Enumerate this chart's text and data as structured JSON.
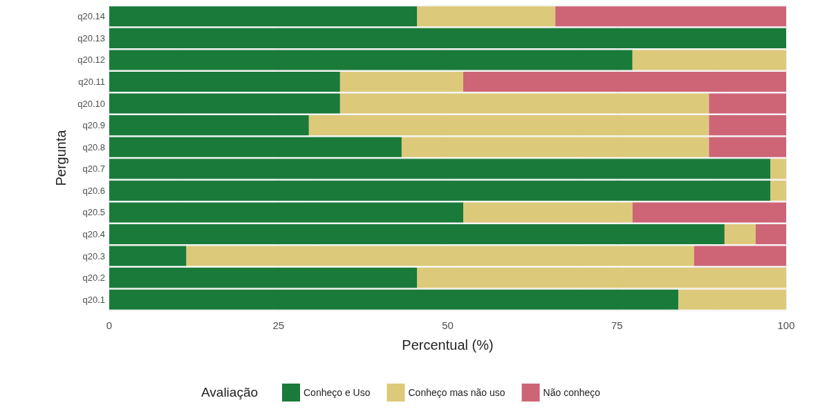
{
  "chart_data": {
    "type": "bar",
    "orientation": "horizontal",
    "stacked": true,
    "xlabel": "Percentual (%)",
    "ylabel": "Pergunta",
    "legend_title": "Avaliação",
    "legend": "bottom",
    "grid": true,
    "categories": [
      "q20.14",
      "q20.13",
      "q20.12",
      "q20.11",
      "q20.10",
      "q20.9",
      "q20.8",
      "q20.7",
      "q20.6",
      "q20.5",
      "q20.4",
      "q20.3",
      "q20.2",
      "q20.1"
    ],
    "xlim": [
      0,
      100
    ],
    "xticks": [
      0,
      25,
      50,
      75,
      100
    ],
    "series": [
      {
        "name": "Conheço e Uso",
        "color": "#1a7a3a",
        "values": [
          45.5,
          100,
          77.3,
          34.1,
          34.1,
          29.5,
          43.2,
          97.7,
          97.7,
          52.3,
          90.9,
          11.4,
          45.5,
          84.1
        ]
      },
      {
        "name": "Conheço mas não uso",
        "color": "#dcc97a",
        "values": [
          20.4,
          0,
          22.7,
          18.2,
          54.5,
          59.1,
          45.4,
          2.3,
          2.3,
          25,
          4.6,
          75,
          54.5,
          15.9
        ]
      },
      {
        "name": "Não conheço",
        "color": "#cd6577",
        "values": [
          34.1,
          0,
          0,
          47.7,
          11.4,
          11.4,
          11.4,
          0,
          0,
          22.7,
          4.5,
          13.6,
          0,
          0
        ]
      }
    ]
  }
}
